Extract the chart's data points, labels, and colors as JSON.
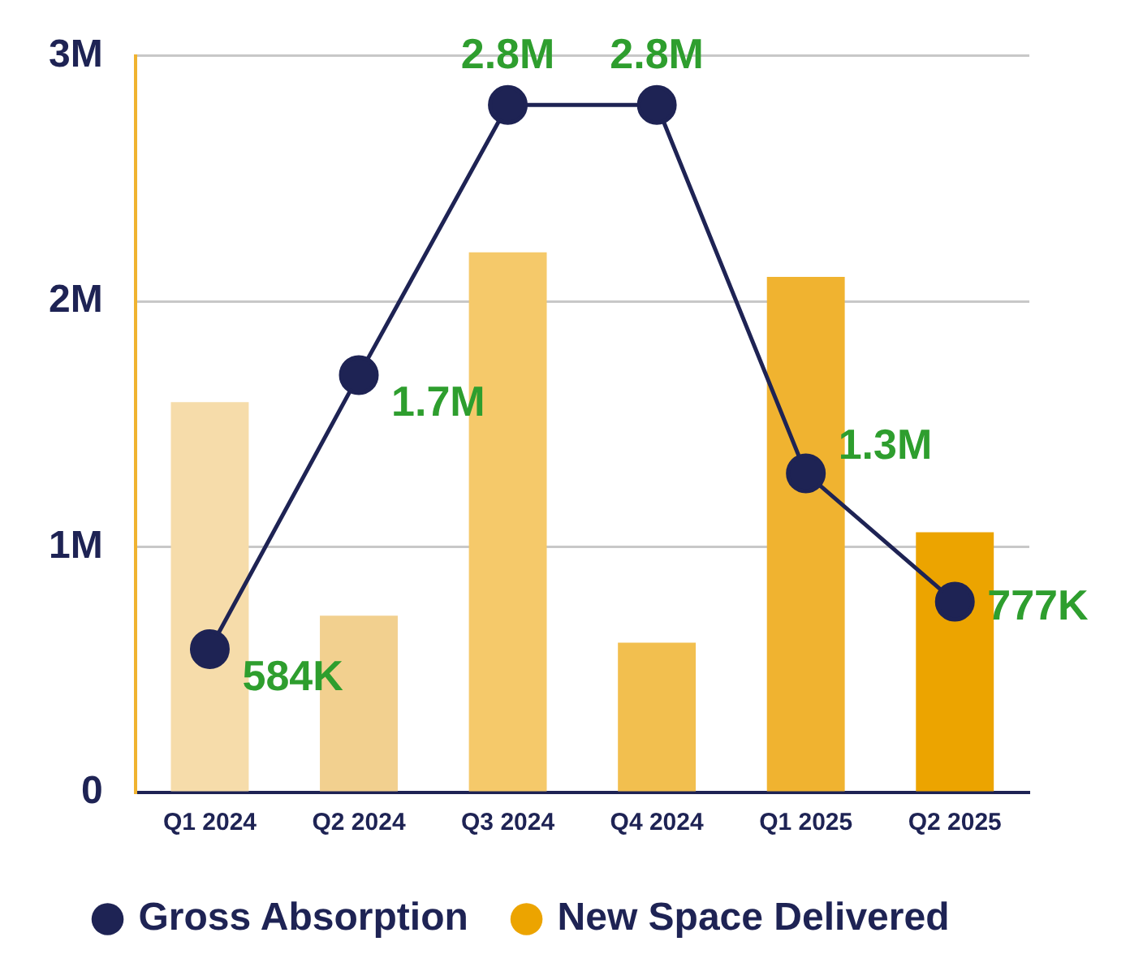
{
  "chart_data": {
    "type": "bar",
    "categories": [
      "Q1 2024",
      "Q2 2024",
      "Q3 2024",
      "Q4 2024",
      "Q1 2025",
      "Q2 2025"
    ],
    "series": [
      {
        "name": "Gross Absorption",
        "type": "line",
        "color": "#1e2354",
        "values": [
          584000,
          1700000,
          2800000,
          2800000,
          1300000,
          777000
        ],
        "value_labels": [
          "584K",
          "1.7M",
          "2.8M",
          "2.8M",
          "1.3M",
          "777K"
        ]
      },
      {
        "name": "New Space Delivered",
        "color": "#eca400",
        "colors": [
          "#f6dcaa",
          "#f2d08f",
          "#f5c96a",
          "#f2bf4f",
          "#f0b330",
          "#eca400"
        ],
        "values": [
          1590000,
          720000,
          2200000,
          610000,
          2100000,
          1060000
        ]
      }
    ],
    "ylim": [
      0,
      3000000
    ],
    "yticks": [
      0,
      {
        "value": 1000000,
        "label": "1M"
      },
      {
        "value": 2000000,
        "label": "2M"
      },
      {
        "value": 3000000,
        "label": "3M"
      }
    ],
    "grid": "y",
    "legend": "bottom",
    "marker": "circle",
    "line_style": "solid"
  }
}
